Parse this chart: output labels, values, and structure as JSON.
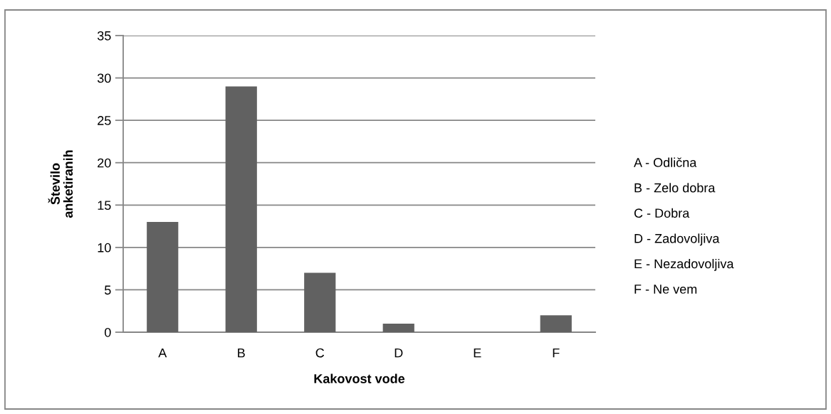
{
  "chart_data": {
    "type": "bar",
    "categories": [
      "A",
      "B",
      "C",
      "D",
      "E",
      "F"
    ],
    "values": [
      13,
      29,
      7,
      1,
      0,
      2
    ],
    "color": "#616161",
    "xlabel": "Kakovost vode",
    "ylabel": "Število\nanketiranih",
    "ylim": [
      0,
      35
    ],
    "yticks": [
      0,
      5,
      10,
      15,
      20,
      25,
      30,
      35
    ],
    "grid": "y",
    "annotations": [
      "A - Odlična",
      "B - Zelo dobra",
      "C - Dobra",
      "D - Zadovoljiva",
      "E - Nezadovoljiva",
      "F - Ne vem"
    ]
  }
}
